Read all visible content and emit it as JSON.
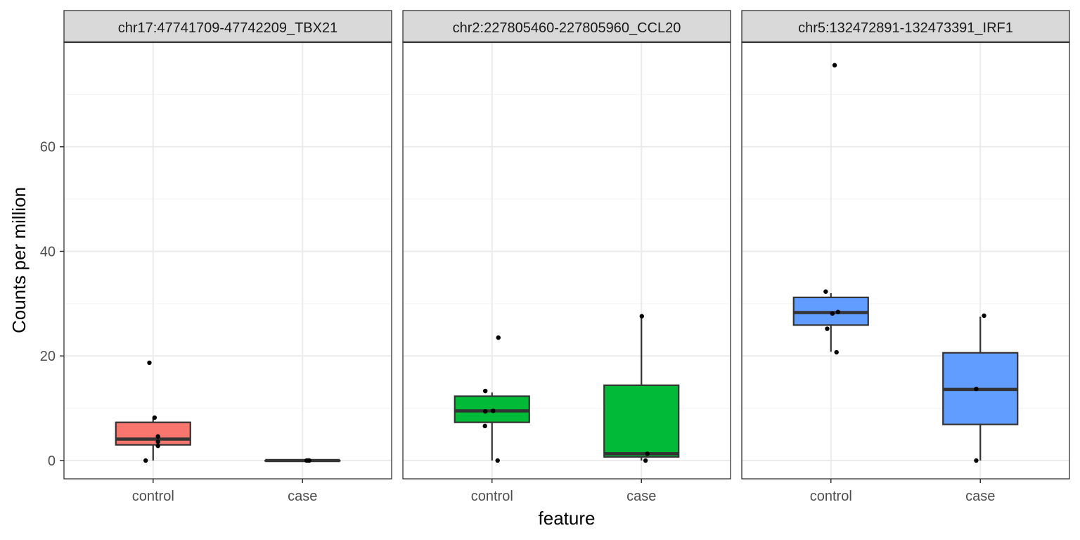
{
  "chart_data": {
    "type": "box",
    "xlabel": "feature",
    "ylabel": "Counts per million",
    "categories": [
      "control",
      "case"
    ],
    "ylim": [
      -3.5,
      80
    ],
    "yticks": [
      0,
      20,
      40,
      60
    ],
    "grid": true,
    "legend": "none",
    "colors": {
      "panel_border": "#333333",
      "strip_bg": "#d9d9d9",
      "grid_major": "#ebebeb",
      "grid_minor": "#f5f5f5",
      "box_line": "#333333",
      "point": "#000000"
    },
    "panels": [
      {
        "title": "chr17:47741709-47742209_TBX21",
        "fill": "#f8766d",
        "groups": [
          {
            "category": "control",
            "whisker_low": 0,
            "q1": 3.0,
            "median": 4.1,
            "q3": 7.3,
            "whisker_high": 8.2,
            "points": [
              {
                "x": -0.2,
                "y": 0.0
              },
              {
                "x": -0.1,
                "y": 18.7
              },
              {
                "x": 0.04,
                "y": 8.2
              },
              {
                "x": 0.13,
                "y": 4.6
              },
              {
                "x": 0.13,
                "y": 3.6
              },
              {
                "x": 0.13,
                "y": 2.8
              }
            ]
          },
          {
            "category": "case",
            "whisker_low": 0,
            "q1": 0,
            "median": 0,
            "q3": 0,
            "whisker_high": 0,
            "points": [
              {
                "x": 0.11,
                "y": 0.0
              },
              {
                "x": 0.15,
                "y": 0.0
              },
              {
                "x": 0.18,
                "y": 0.0
              }
            ]
          }
        ]
      },
      {
        "title": "chr2:227805460-227805960_CCL20",
        "fill": "#00ba38",
        "groups": [
          {
            "category": "control",
            "whisker_low": 0,
            "q1": 7.3,
            "median": 9.5,
            "q3": 12.3,
            "whisker_high": 13.0,
            "points": [
              {
                "x": -0.18,
                "y": 13.3
              },
              {
                "x": 0.17,
                "y": 23.5
              },
              {
                "x": -0.18,
                "y": 9.4
              },
              {
                "x": 0.03,
                "y": 9.5
              },
              {
                "x": -0.19,
                "y": 6.6
              },
              {
                "x": 0.15,
                "y": 0.0
              }
            ]
          },
          {
            "category": "case",
            "whisker_low": 0,
            "q1": 0.7,
            "median": 1.3,
            "q3": 14.4,
            "whisker_high": 27.5,
            "points": [
              {
                "x": 0.01,
                "y": 27.6
              },
              {
                "x": 0.16,
                "y": 1.3
              },
              {
                "x": 0.11,
                "y": 0.0
              }
            ]
          }
        ]
      },
      {
        "title": "chr5:132472891-132473391_IRF1",
        "fill": "#619cff",
        "groups": [
          {
            "category": "control",
            "whisker_low": 20.8,
            "q1": 25.9,
            "median": 28.3,
            "q3": 31.2,
            "whisker_high": 32.0,
            "points": [
              {
                "x": 0.1,
                "y": 75.6
              },
              {
                "x": -0.14,
                "y": 32.3
              },
              {
                "x": 0.04,
                "y": 28.1
              },
              {
                "x": 0.19,
                "y": 28.4
              },
              {
                "x": -0.1,
                "y": 25.2
              },
              {
                "x": 0.15,
                "y": 20.7
              }
            ]
          },
          {
            "category": "case",
            "whisker_low": 0,
            "q1": 6.9,
            "median": 13.6,
            "q3": 20.6,
            "whisker_high": 27.5,
            "points": [
              {
                "x": 0.1,
                "y": 27.7
              },
              {
                "x": -0.11,
                "y": 13.7
              },
              {
                "x": -0.11,
                "y": 0.0
              }
            ]
          }
        ]
      }
    ]
  }
}
